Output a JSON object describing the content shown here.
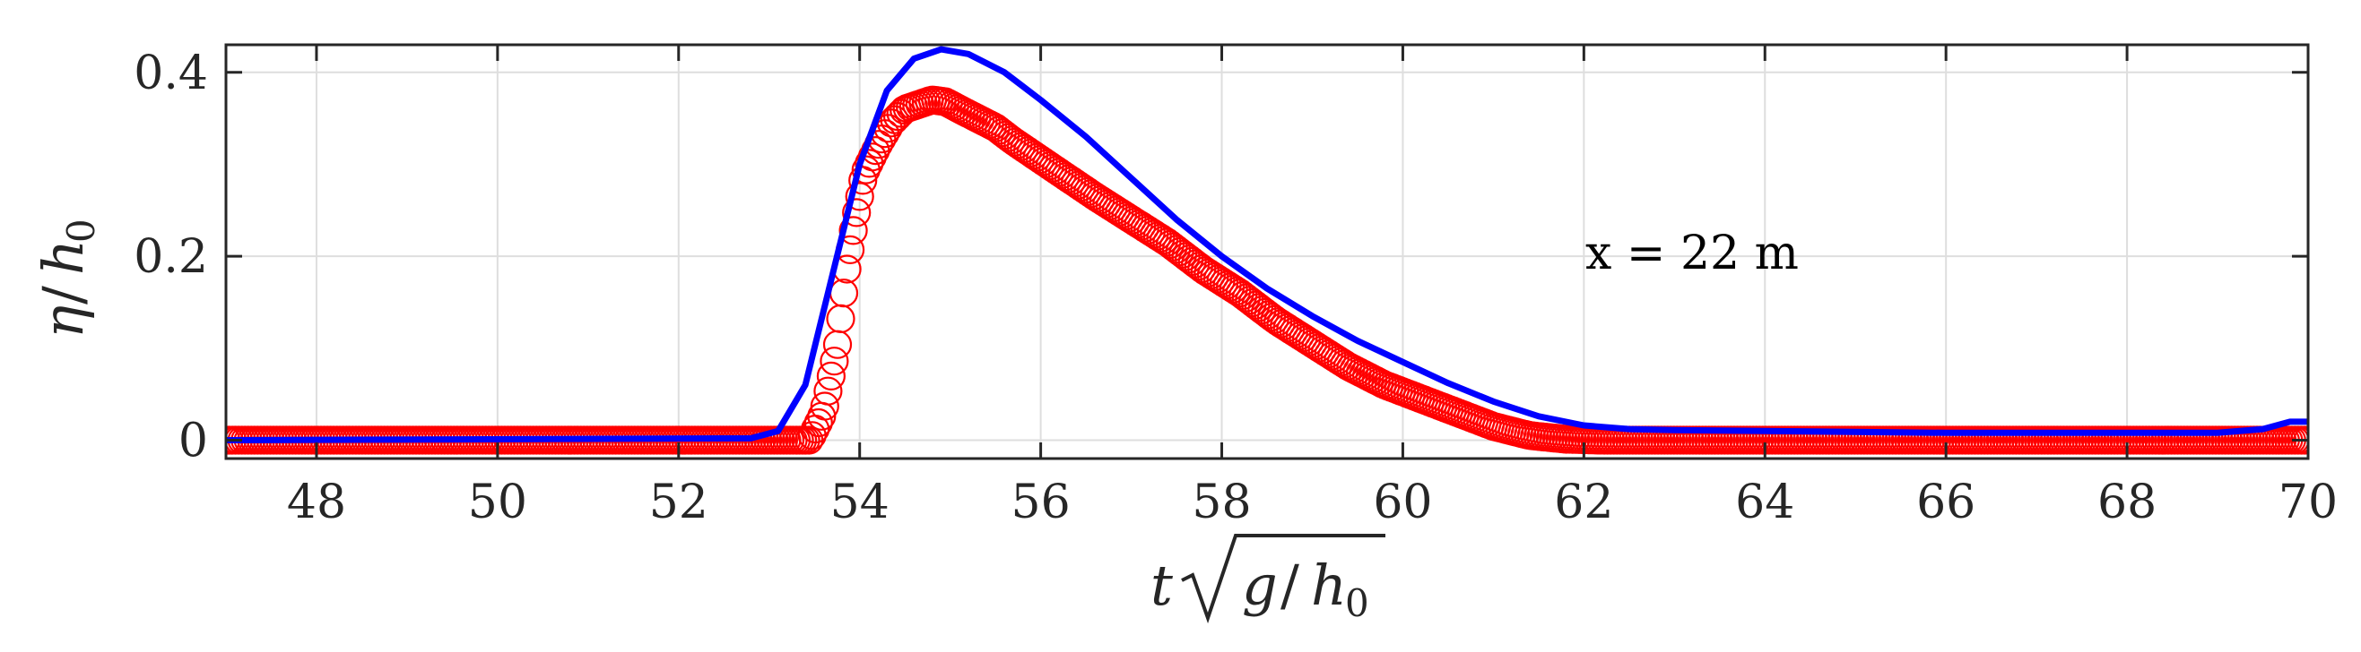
{
  "chart_data": {
    "type": "line",
    "xlabel": "t√(g/h₀)",
    "xlabel_parts": {
      "t": "t",
      "g": "g",
      "slash": "/",
      "h": "h",
      "sub": "0"
    },
    "ylabel": "η/h₀",
    "ylabel_parts": {
      "eta": "η",
      "slash": "/",
      "h": "h",
      "sub": "0"
    },
    "xlim": [
      47,
      70
    ],
    "ylim": [
      -0.02,
      0.43
    ],
    "xticks": [
      48,
      50,
      52,
      54,
      56,
      58,
      60,
      62,
      64,
      66,
      68,
      70
    ],
    "xtick_labels": [
      "48",
      "50",
      "52",
      "54",
      "56",
      "58",
      "60",
      "62",
      "64",
      "66",
      "68",
      "70"
    ],
    "yticks": [
      0,
      0.2,
      0.4
    ],
    "ytick_labels": [
      "0",
      "0.2",
      "0.4"
    ],
    "grid": true,
    "annotation": "x = 22 m",
    "series": [
      {
        "style": "line",
        "color": "#0000ff",
        "x": [
          47,
          52.8,
          53.1,
          53.4,
          53.7,
          54.0,
          54.3,
          54.6,
          54.9,
          55.2,
          55.6,
          56.0,
          56.5,
          57.0,
          57.5,
          58.0,
          58.5,
          59.0,
          59.5,
          60.0,
          60.5,
          61.0,
          61.5,
          62.0,
          62.5,
          63.0,
          64.0,
          66.0,
          68.0,
          69.0,
          69.5,
          69.8,
          70.0
        ],
        "y": [
          0.0,
          0.002,
          0.01,
          0.06,
          0.18,
          0.3,
          0.38,
          0.415,
          0.425,
          0.42,
          0.4,
          0.37,
          0.33,
          0.285,
          0.24,
          0.2,
          0.165,
          0.135,
          0.108,
          0.085,
          0.062,
          0.042,
          0.026,
          0.016,
          0.012,
          0.011,
          0.01,
          0.008,
          0.008,
          0.008,
          0.012,
          0.02,
          0.02
        ]
      },
      {
        "style": "markers",
        "marker": "open-circle",
        "color": "#ff0000",
        "x": [
          47,
          52.9,
          53.2,
          53.45,
          53.6,
          53.75,
          53.85,
          53.95,
          54.05,
          54.2,
          54.35,
          54.5,
          54.65,
          54.8,
          54.95,
          55.1,
          55.3,
          55.5,
          55.7,
          56.0,
          56.3,
          56.6,
          57.0,
          57.4,
          57.8,
          58.2,
          58.6,
          59.0,
          59.4,
          59.8,
          60.2,
          60.6,
          61.0,
          61.4,
          61.8,
          62.2,
          63.0,
          64.0,
          66.0,
          68.0,
          69.5,
          70.0
        ],
        "y": [
          0.0,
          0.0,
          0.0,
          0.0,
          0.03,
          0.1,
          0.18,
          0.24,
          0.29,
          0.32,
          0.345,
          0.36,
          0.365,
          0.37,
          0.368,
          0.36,
          0.35,
          0.34,
          0.325,
          0.305,
          0.285,
          0.265,
          0.24,
          0.215,
          0.185,
          0.16,
          0.13,
          0.105,
          0.08,
          0.06,
          0.045,
          0.03,
          0.015,
          0.005,
          0.001,
          0.0,
          0.0,
          0.0,
          0.0,
          0.0,
          0.0,
          0.0
        ]
      }
    ]
  }
}
